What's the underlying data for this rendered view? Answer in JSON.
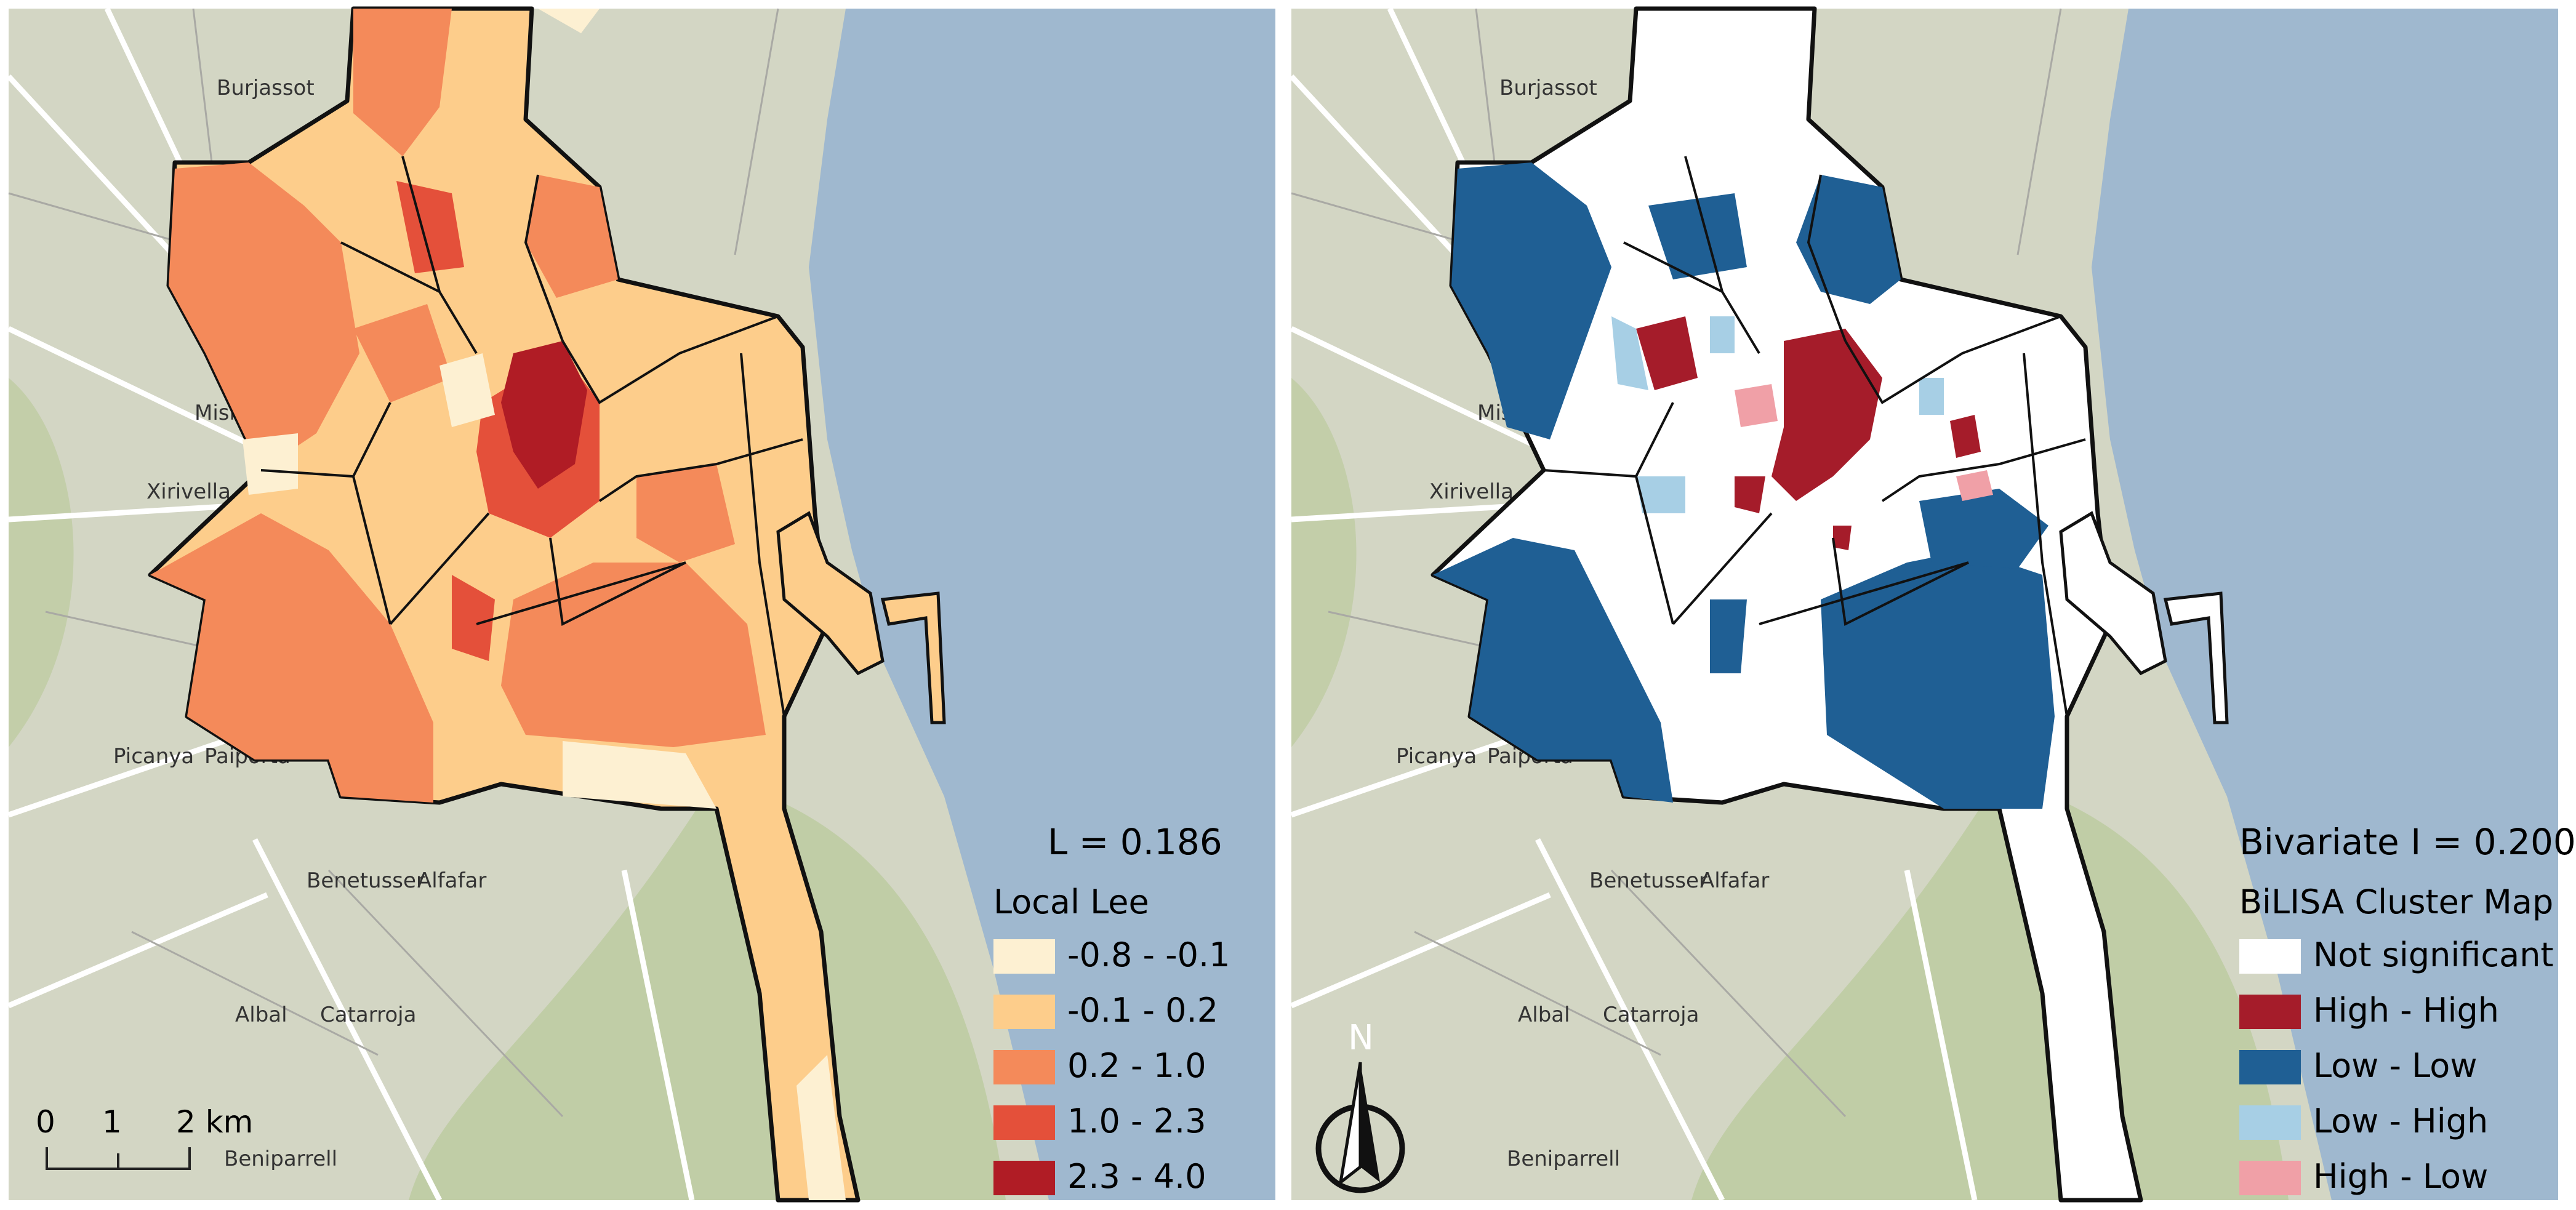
{
  "colors": {
    "sea": "#9fb8cf",
    "land": "#d3d6c4",
    "vegetation": "#b9c99c",
    "urban": "#c7c6c1",
    "roads": "#ffffff",
    "boundary": "#111111"
  },
  "basemap_labels": {
    "burjassot": "Burjassot",
    "mislata": "Mislata",
    "xirivella": "Xirivella",
    "picanya": "Picanya",
    "paiporta": "Paiporta",
    "benetusser": "Benetusser",
    "alfafar": "Alfafar",
    "albal": "Albal",
    "catarroja": "Catarroja",
    "beniparrell": "Beniparrell"
  },
  "left_map": {
    "statistic": "L = 0.186",
    "legend_title": "Local Lee",
    "legend_items": [
      {
        "label": "-0.8 - -0.1",
        "color": "#fdf0d2"
      },
      {
        "label": "-0.1 - 0.2",
        "color": "#fdcd8b"
      },
      {
        "label": "0.2 - 1.0",
        "color": "#f48a5a"
      },
      {
        "label": "1.0 - 2.3",
        "color": "#e4503a"
      },
      {
        "label": "2.3 - 4.0",
        "color": "#b01c25"
      }
    ],
    "scale_bar": {
      "tick_0": "0",
      "tick_1": "1",
      "tick_2": "2 km"
    }
  },
  "right_map": {
    "statistic": "Bivariate I = 0.200",
    "legend_title": "BiLISA Cluster Map",
    "legend_items": [
      {
        "label": "Not significant",
        "color": "#ffffff"
      },
      {
        "label": "High - High",
        "color": "#a51c2a"
      },
      {
        "label": "Low - Low",
        "color": "#1f5f94"
      },
      {
        "label": "Low - High",
        "color": "#a7cfe5"
      },
      {
        "label": "High - Low",
        "color": "#f0a0a7"
      }
    ],
    "north_arrow": "N"
  }
}
